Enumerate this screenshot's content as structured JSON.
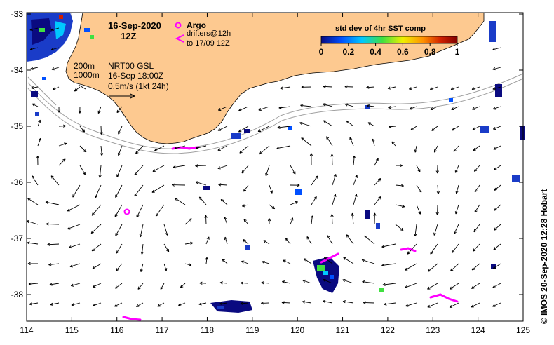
{
  "title": {
    "date": "16-Sep-2020",
    "time": "12Z"
  },
  "legend": {
    "argo_label": "Argo",
    "drifters_label": "drifters@12h",
    "drifters_sub": "to 17/09 12Z",
    "argo_color": "#ff00ff",
    "drifter_color": "#ff00ff"
  },
  "colorbar": {
    "title": "std dev of 4hr SST comp",
    "ticks": [
      "0",
      "0.2",
      "0.4",
      "0.6",
      "0.8",
      "1"
    ],
    "colors": [
      "#0a0a80",
      "#0050ff",
      "#00c8ff",
      "#40e040",
      "#f0f000",
      "#ff9000",
      "#d02000",
      "#800000"
    ]
  },
  "isobaths": {
    "label_200": "200m",
    "label_1000": "1000m"
  },
  "current_info": {
    "line1": "NRT00 GSL",
    "line2": "16-Sep 18:00Z",
    "line3": "0.5m/s (1kt 24h)"
  },
  "axes": {
    "x_ticks": [
      "114",
      "115",
      "116",
      "117",
      "118",
      "119",
      "120",
      "121",
      "122",
      "123",
      "124",
      "125"
    ],
    "y_ticks": [
      "-33",
      "-34",
      "-35",
      "-36",
      "-37",
      "-38"
    ]
  },
  "credit": "© IMOS 20-Sep-2020 12:28 Hobart",
  "colors": {
    "land": "#fdc990",
    "water": "#ffffff",
    "isobath": "#a0a0a0",
    "arrow": "#000000"
  }
}
